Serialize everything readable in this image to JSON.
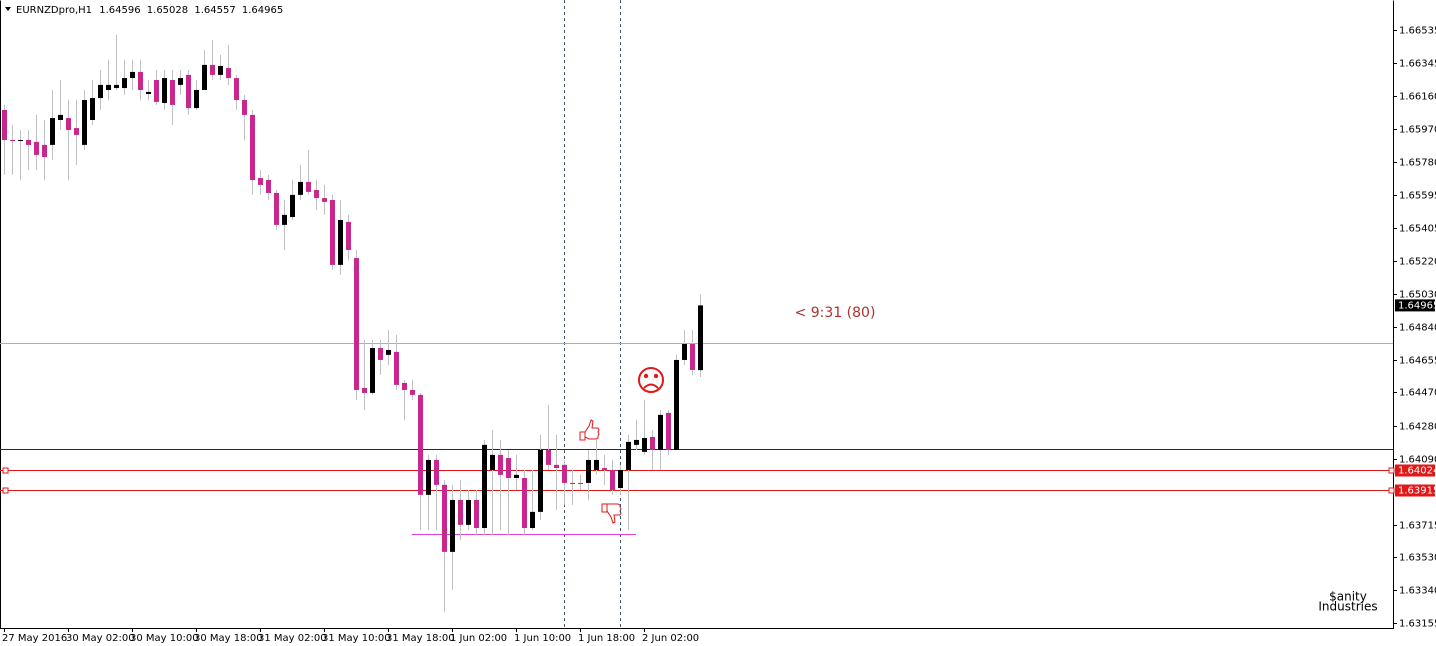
{
  "chart_data": {
    "type": "candlestick",
    "symbol": "EURNZDpro,H1",
    "categories": [
      "27 May 2016",
      null,
      null,
      null,
      null,
      null,
      null,
      null,
      "30 May 02:00",
      null,
      null,
      null,
      null,
      null,
      null,
      null,
      "30 May 10:00",
      null,
      null,
      null,
      null,
      null,
      null,
      null,
      "30 May 18:00",
      null,
      null,
      null,
      null,
      null,
      null,
      null,
      "31 May 02:00",
      null,
      null,
      null,
      null,
      null,
      null,
      null,
      "31 May 10:00",
      null,
      null,
      null,
      null,
      null,
      null,
      null,
      "31 May 18:00",
      null,
      null,
      null,
      null,
      null,
      null,
      null,
      "1 Jun 02:00",
      null,
      null,
      null,
      null,
      null,
      null,
      null,
      "1 Jun 10:00",
      null,
      null,
      null,
      null,
      null,
      null,
      null,
      "1 Jun 18:00",
      null,
      null,
      null,
      null,
      null,
      null,
      null,
      "2 Jun 02:00",
      null,
      null,
      null,
      null,
      null,
      null,
      null
    ],
    "open": [
      1.66079,
      1.65908,
      1.65902,
      1.65908,
      1.65897,
      1.6588,
      1.6588,
      1.66022,
      1.66033,
      1.65976,
      1.6588,
      1.66022,
      1.66147,
      1.66193,
      1.66204,
      1.66204,
      1.66261,
      1.66296,
      1.6617,
      1.6625,
      1.66119,
      1.6625,
      1.66222,
      1.66279,
      1.6609,
      1.66193,
      1.66336,
      1.66279,
      1.66318,
      1.66261,
      1.66136,
      1.66051,
      1.65691,
      1.6568,
      1.65606,
      1.65424,
      1.65469,
      1.65595,
      1.65669,
      1.65623,
      1.65577,
      1.65566,
      1.65196,
      1.65441,
      1.65235,
      1.64494,
      1.64466,
      1.64722,
      1.64683,
      1.647,
      1.64523,
      1.64483,
      1.64455,
      1.63885,
      1.64084,
      1.63942,
      1.6356,
      1.63856,
      1.63714,
      1.63856,
      1.63696,
      1.64027,
      1.64113,
      1.64095,
      1.63981,
      1.63981,
      1.63696,
      1.63788,
      1.64141,
      1.64056,
      1.64056,
      1.63953,
      1.63953,
      1.63953,
      1.64027,
      1.64038,
      1.64027,
      1.63924,
      1.64027,
      1.6417,
      1.6413,
      1.64215,
      1.64141,
      1.64352,
      1.64141,
      1.64654,
      1.64745,
      1.64596
    ],
    "high": [
      1.66108,
      1.65994,
      1.65965,
      1.65965,
      1.66051,
      1.66022,
      1.66193,
      1.6625,
      1.66136,
      1.66136,
      1.66193,
      1.6625,
      1.66307,
      1.66364,
      1.66507,
      1.66364,
      1.66364,
      1.66364,
      1.6625,
      1.66307,
      1.66307,
      1.66307,
      1.66307,
      1.66307,
      1.6625,
      1.66421,
      1.66478,
      1.66393,
      1.6645,
      1.66279,
      1.66165,
      1.66079,
      1.65737,
      1.65709,
      1.65623,
      1.65566,
      1.6568,
      1.65766,
      1.65851,
      1.6568,
      1.65652,
      1.65595,
      1.65566,
      1.65481,
      1.65281,
      1.64768,
      1.64768,
      1.64768,
      1.64825,
      1.64797,
      1.6454,
      1.6454,
      1.64466,
      1.64113,
      1.64113,
      1.6397,
      1.63942,
      1.6397,
      1.63913,
      1.63913,
      1.64198,
      1.64255,
      1.64198,
      1.64141,
      1.64113,
      1.64027,
      1.64027,
      1.64227,
      1.64398,
      1.64227,
      1.64084,
      1.64027,
      1.63999,
      1.64141,
      1.64198,
      1.64113,
      1.64084,
      1.64056,
      1.64227,
      1.64312,
      1.64426,
      1.64255,
      1.64369,
      1.64369,
      1.64683,
      1.64825,
      1.64825,
      1.65028
    ],
    "low": [
      1.65709,
      1.65709,
      1.6568,
      1.65737,
      1.65737,
      1.6568,
      1.65794,
      1.65965,
      1.6568,
      1.65766,
      1.65851,
      1.65994,
      1.66079,
      1.66136,
      1.66193,
      1.66165,
      1.66193,
      1.66136,
      1.66136,
      1.66108,
      1.66079,
      1.65994,
      1.66165,
      1.66051,
      1.66079,
      1.66193,
      1.6625,
      1.6625,
      1.66222,
      1.66079,
      1.65908,
      1.65595,
      1.65595,
      1.65566,
      1.65395,
      1.65281,
      1.65452,
      1.65566,
      1.65595,
      1.65509,
      1.65481,
      1.65167,
      1.65139,
      1.65224,
      1.64426,
      1.64369,
      1.64455,
      1.64569,
      1.64626,
      1.64483,
      1.64312,
      1.64426,
      1.63685,
      1.63685,
      1.63685,
      1.63218,
      1.63343,
      1.63628,
      1.63685,
      1.63657,
      1.63657,
      1.63657,
      1.63685,
      1.63657,
      1.63913,
      1.63657,
      1.63685,
      1.63742,
      1.64027,
      1.63799,
      1.63828,
      1.63828,
      1.63913,
      1.63856,
      1.63999,
      1.63942,
      1.63885,
      1.63885,
      1.63685,
      1.64141,
      1.64113,
      1.64027,
      1.64027,
      1.64113,
      1.64141,
      1.64626,
      1.64569,
      1.64557
    ],
    "close": [
      1.65908,
      1.65902,
      1.65908,
      1.6588,
      1.65823,
      1.65811,
      1.66033,
      1.66051,
      1.65965,
      1.65937,
      1.66136,
      1.66147,
      1.66222,
      1.66222,
      1.66222,
      1.66261,
      1.66296,
      1.66193,
      1.66182,
      1.66125,
      1.66261,
      1.66108,
      1.66261,
      1.6609,
      1.66193,
      1.66336,
      1.66279,
      1.6633,
      1.66261,
      1.66136,
      1.66051,
      1.6568,
      1.65652,
      1.65606,
      1.65424,
      1.65481,
      1.65595,
      1.65669,
      1.65612,
      1.65577,
      1.65555,
      1.65196,
      1.65452,
      1.65281,
      1.64483,
      1.64466,
      1.64722,
      1.64654,
      1.64711,
      1.64512,
      1.64483,
      1.64455,
      1.63885,
      1.64084,
      1.63942,
      1.6356,
      1.63856,
      1.63714,
      1.63856,
      1.63696,
      1.6417,
      1.64113,
      1.63999,
      1.63981,
      1.63999,
      1.63696,
      1.63788,
      1.64141,
      1.64056,
      1.64038,
      1.63953,
      1.63947,
      1.63947,
      1.64084,
      1.64084,
      1.64027,
      1.63913,
      1.64027,
      1.64187,
      1.64198,
      1.64209,
      1.64141,
      1.64341,
      1.64141,
      1.64654,
      1.64745,
      1.64597,
      1.64965
    ],
    "bull_color": "#000000",
    "bear_color": "#c8288c",
    "wick_color": "#c0c0c0",
    "ylim": [
      1.63126,
      1.66706
    ],
    "yticks": [
      1.66535,
      1.66345,
      {
        "value": 1.6616,
        "label": "1.66160"
      },
      {
        "value": 1.6597,
        "label": "1.65970"
      },
      {
        "value": 1.6578,
        "label": "1.65780"
      },
      1.65595,
      1.65405,
      {
        "value": 1.6522,
        "label": "1.65220"
      },
      {
        "value": 1.6503,
        "label": "1.65030"
      },
      {
        "value": 1.6484,
        "label": "1.64840"
      },
      1.64655,
      {
        "value": 1.6447,
        "label": "1.64470"
      },
      {
        "value": 1.6428,
        "label": "1.64280"
      },
      {
        "value": 1.6409,
        "label": "1.64090"
      },
      1.63715,
      {
        "value": 1.6353,
        "label": "1.63530"
      },
      {
        "value": 1.6334,
        "label": "1.63340"
      },
      1.63155
    ],
    "levels": [
      {
        "value": 1.64751,
        "color": "#e8a05a"
      },
      {
        "value": 1.64147,
        "color": "#1c1ca0"
      },
      {
        "value": 1.64024,
        "color": "#e01818",
        "tag": true
      },
      {
        "value": 1.63915,
        "color": "#e01818",
        "tag": true
      }
    ],
    "segment": {
      "value": 1.63662,
      "start": 51,
      "end": 79,
      "color": "#e040e0"
    },
    "vlines": [
      70,
      77
    ],
    "timer_label": "< 9:31 (80)",
    "watermark": [
      "$anity",
      "Industries"
    ]
  }
}
